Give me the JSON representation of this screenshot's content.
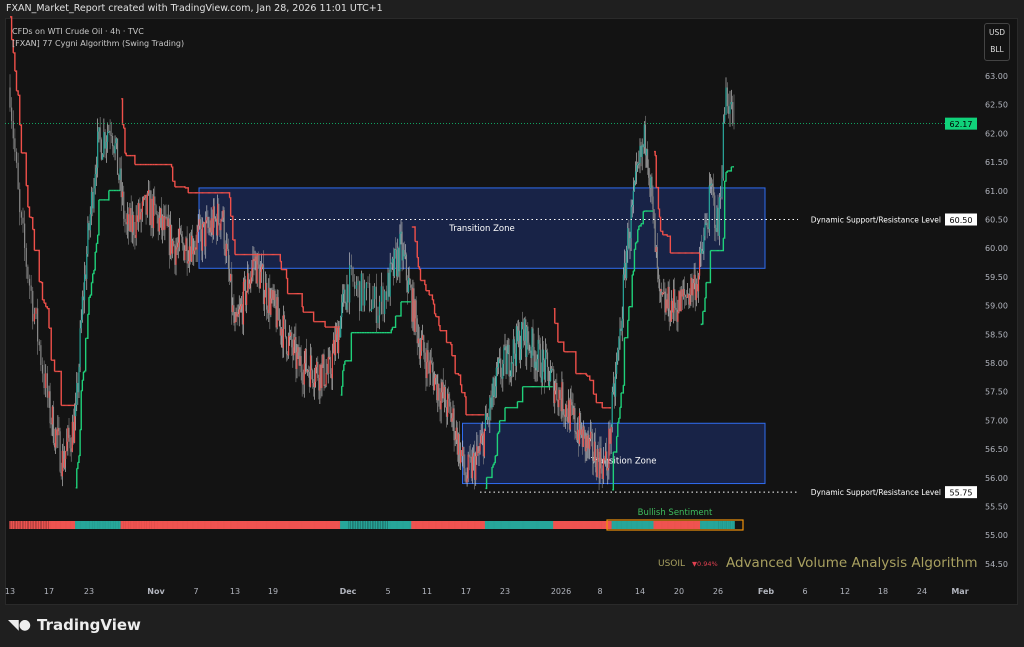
{
  "header": {
    "title": "FXAN_Market_Report created with TradingView.com, Jan 28, 2026 11:01 UTC+1"
  },
  "legend": {
    "symbol_line": "CFDs on WTI Crude Oil · 4h · TVC",
    "indicator": "[FXAN] 77 Cygni Algorithm (Swing Trading)"
  },
  "unit": {
    "currency": "USD",
    "unit": "BLL"
  },
  "footer": {
    "brand": "TradingView"
  },
  "watermark": {
    "symbol": "USOIL",
    "change": "▼0.94%",
    "title": "Advanced Volume Analysis Algorithm"
  },
  "colors": {
    "up": "#26a69a",
    "down": "#ef5350",
    "support": "#1fd17a",
    "resistance": "#f0504a",
    "zone_fill": "#1b2a5a",
    "zone_border": "#2f6cf0",
    "current_price": "#10d27a",
    "sentiment_box": "#f0920a",
    "watermark": "#a8a060"
  },
  "chart_data": {
    "type": "candlestick",
    "timeframe": "4h",
    "y_ticks": [
      "63.00",
      "62.50",
      "62.00",
      "61.50",
      "61.00",
      "60.50",
      "60.00",
      "59.50",
      "59.00",
      "58.50",
      "58.00",
      "57.50",
      "57.00",
      "56.50",
      "56.00",
      "55.50",
      "55.00",
      "54.50"
    ],
    "ylim": [
      54.5,
      63.0
    ],
    "x_ticks": [
      "13",
      "17",
      "23",
      "Nov",
      "7",
      "13",
      "19",
      "Dec",
      "5",
      "11",
      "17",
      "23",
      "2026",
      "8",
      "14",
      "20",
      "26",
      "Feb",
      "6",
      "12",
      "18",
      "24",
      "Mar"
    ],
    "close_path": [
      [
        "2025-10-13",
        62.8
      ],
      [
        "2025-10-14",
        60.5
      ],
      [
        "2025-10-17",
        57.2
      ],
      [
        "2025-10-19",
        56.3
      ],
      [
        "2025-10-21",
        57.0
      ],
      [
        "2025-10-22",
        59.0
      ],
      [
        "2025-10-24",
        61.7
      ],
      [
        "2025-10-26",
        62.2
      ],
      [
        "2025-10-28",
        60.3
      ],
      [
        "2025-10-31",
        60.7
      ],
      [
        "2025-11-04",
        60.0
      ],
      [
        "2025-11-08",
        60.2
      ],
      [
        "2025-11-11",
        60.6
      ],
      [
        "2025-11-13",
        58.5
      ],
      [
        "2025-11-16",
        59.8
      ],
      [
        "2025-11-18",
        59.2
      ],
      [
        "2025-11-23",
        58.0
      ],
      [
        "2025-11-28",
        57.8
      ],
      [
        "2025-12-01",
        59.4
      ],
      [
        "2025-12-04",
        59.0
      ],
      [
        "2025-12-07",
        60.0
      ],
      [
        "2025-12-10",
        58.3
      ],
      [
        "2025-12-13",
        57.5
      ],
      [
        "2025-12-15",
        57.0
      ],
      [
        "2025-12-17",
        56.0
      ],
      [
        "2025-12-19",
        56.4
      ],
      [
        "2025-12-22",
        57.8
      ],
      [
        "2025-12-26",
        58.5
      ],
      [
        "2025-12-30",
        57.8
      ],
      [
        "2026-01-02",
        57.2
      ],
      [
        "2026-01-06",
        56.5
      ],
      [
        "2026-01-09",
        56.2
      ],
      [
        "2026-01-11",
        58.5
      ],
      [
        "2026-01-12",
        60.0
      ],
      [
        "2026-01-14",
        61.5
      ],
      [
        "2026-01-15",
        62.0
      ],
      [
        "2026-01-17",
        59.0
      ],
      [
        "2026-01-20",
        59.0
      ],
      [
        "2026-01-23",
        59.5
      ],
      [
        "2026-01-25",
        61.0
      ],
      [
        "2026-01-26",
        60.3
      ],
      [
        "2026-01-27",
        62.8
      ],
      [
        "2026-01-28",
        62.17
      ]
    ],
    "current_price": "62.17",
    "zones": [
      {
        "label": "Transition Zone",
        "top": 61.05,
        "bottom": 59.65,
        "start": "2025-11-09"
      },
      {
        "label": "Transition Zone",
        "top": 56.95,
        "bottom": 55.9,
        "start": "2025-12-18"
      }
    ],
    "levels": [
      {
        "label": "Dynamic Support/Resistance Level",
        "price": "60.50"
      },
      {
        "label": "Dynamic Support/Resistance Level",
        "price": "55.75"
      }
    ],
    "sentiment": {
      "label": "Bullish Sentiment"
    }
  }
}
